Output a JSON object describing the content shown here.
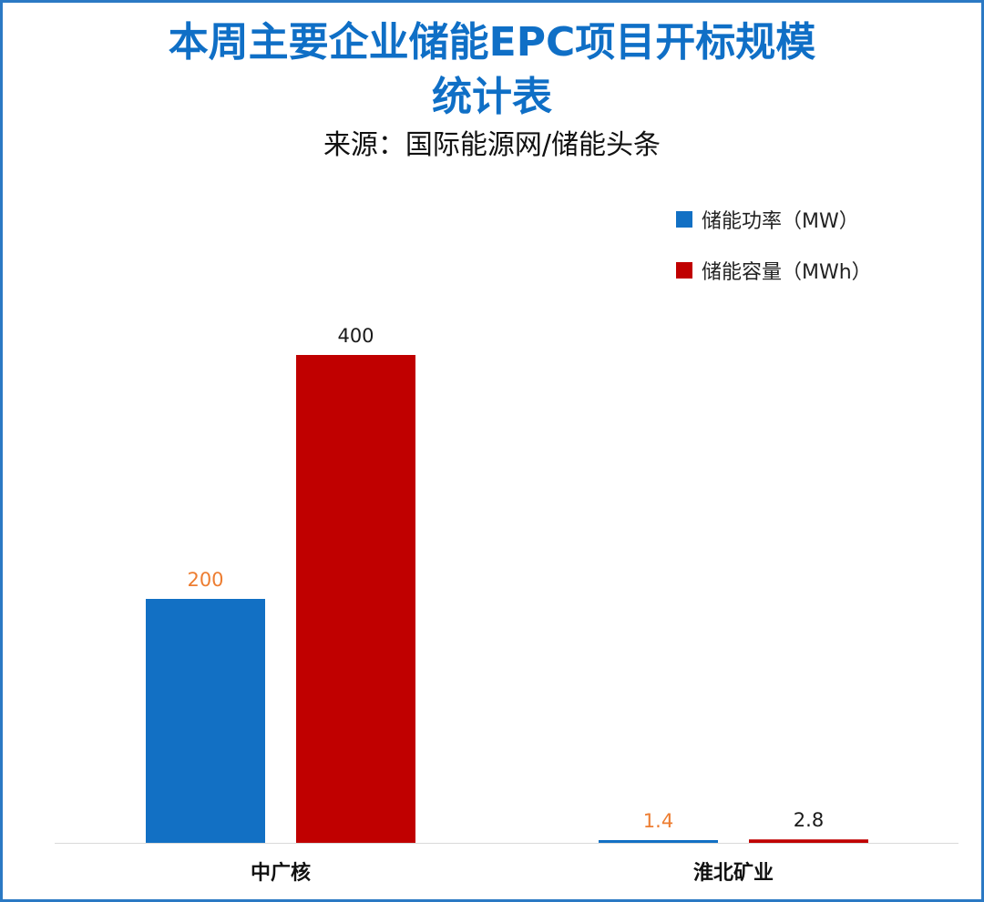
{
  "title_line1": "本周主要企业储能EPC项目开标规模",
  "title_line2": "统计表",
  "subtitle": "来源：国际能源网/储能头条",
  "colors": {
    "power": "#1270c4",
    "capacity": "#c00000",
    "title": "#0f6fc6",
    "power_label": "#ed7d31",
    "capacity_label": "#1a1a1a"
  },
  "chart_data": {
    "type": "bar",
    "categories": [
      "中广核",
      "淮北矿业"
    ],
    "series": [
      {
        "name": "储能功率（MW）",
        "values": [
          200,
          1.4
        ],
        "labels": [
          "200",
          "1.4"
        ]
      },
      {
        "name": "储能容量（MWh）",
        "values": [
          400,
          2.8
        ],
        "labels": [
          "400",
          "2.8"
        ]
      }
    ],
    "ylim": [
      0,
      430
    ],
    "grid": false,
    "legend": "top-right"
  }
}
